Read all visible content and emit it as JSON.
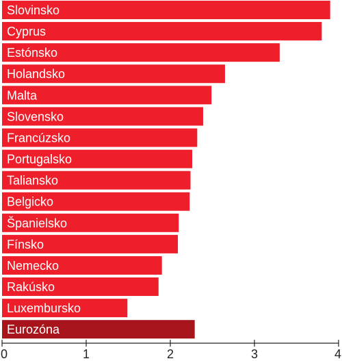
{
  "chart_data": {
    "type": "bar",
    "orientation": "horizontal",
    "title": "",
    "xlabel": "",
    "ylabel": "",
    "xlim": [
      0,
      4
    ],
    "x_ticks": [
      "0",
      "1",
      "2",
      "3",
      "4"
    ],
    "grid": false,
    "legend": "none",
    "colors": {
      "bar": "#ee1f2b",
      "highlight": "#a8141c",
      "label_text": "#ffffff",
      "axis": "#222222"
    },
    "categories": [
      "Slovinsko",
      "Cyprus",
      "Estónsko",
      "Holandsko",
      "Malta",
      "Slovensko",
      "Francúzsko",
      "Portugalsko",
      "Taliansko",
      "Belgicko",
      "Španielsko",
      "Fínsko",
      "Nemecko",
      "Rakúsko",
      "Luxembursko",
      "Eurozóna"
    ],
    "values": [
      3.9,
      3.8,
      3.3,
      2.65,
      2.49,
      2.39,
      2.32,
      2.26,
      2.24,
      2.23,
      2.1,
      2.09,
      1.9,
      1.86,
      1.49,
      2.29
    ],
    "highlighted": [
      "Eurozóna"
    ]
  }
}
